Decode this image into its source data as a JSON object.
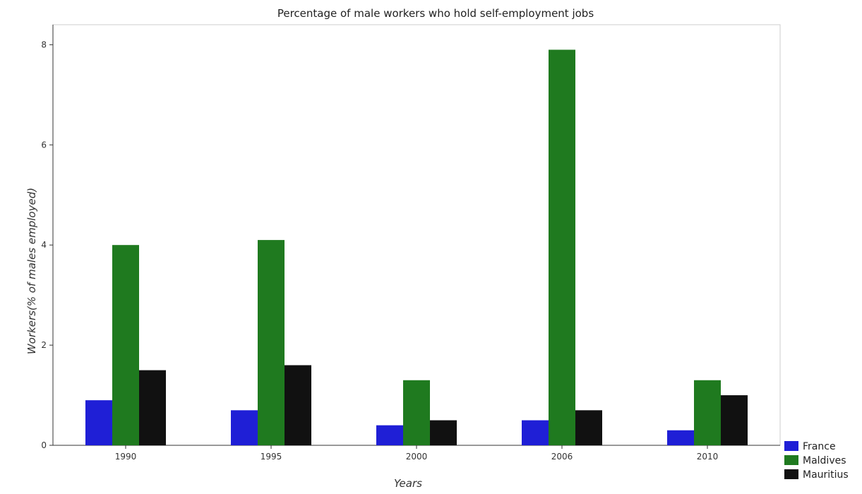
{
  "chart_data": {
    "type": "bar",
    "title": "Percentage of male workers who hold self-employment jobs",
    "xlabel": "Years",
    "ylabel": "Workers(% of males employed)",
    "categories": [
      "1990",
      "1995",
      "2000",
      "2006",
      "2010"
    ],
    "ylim": [
      0,
      8.4
    ],
    "yticks": [
      0,
      2,
      4,
      6,
      8
    ],
    "ytick_labels": [
      "0",
      "2",
      "4",
      "6",
      "8"
    ],
    "grid": false,
    "legend_position": "bottom-right",
    "series": [
      {
        "name": "France",
        "color": "#1f1fd6",
        "values": [
          0.9,
          0.7,
          0.4,
          0.5,
          0.3
        ]
      },
      {
        "name": "Maldives",
        "color": "#1f7a1f",
        "values": [
          4.0,
          4.1,
          1.3,
          7.9,
          1.3
        ]
      },
      {
        "name": "Mauritius",
        "color": "#111111",
        "values": [
          1.5,
          1.6,
          0.5,
          0.7,
          1.0
        ]
      }
    ]
  }
}
